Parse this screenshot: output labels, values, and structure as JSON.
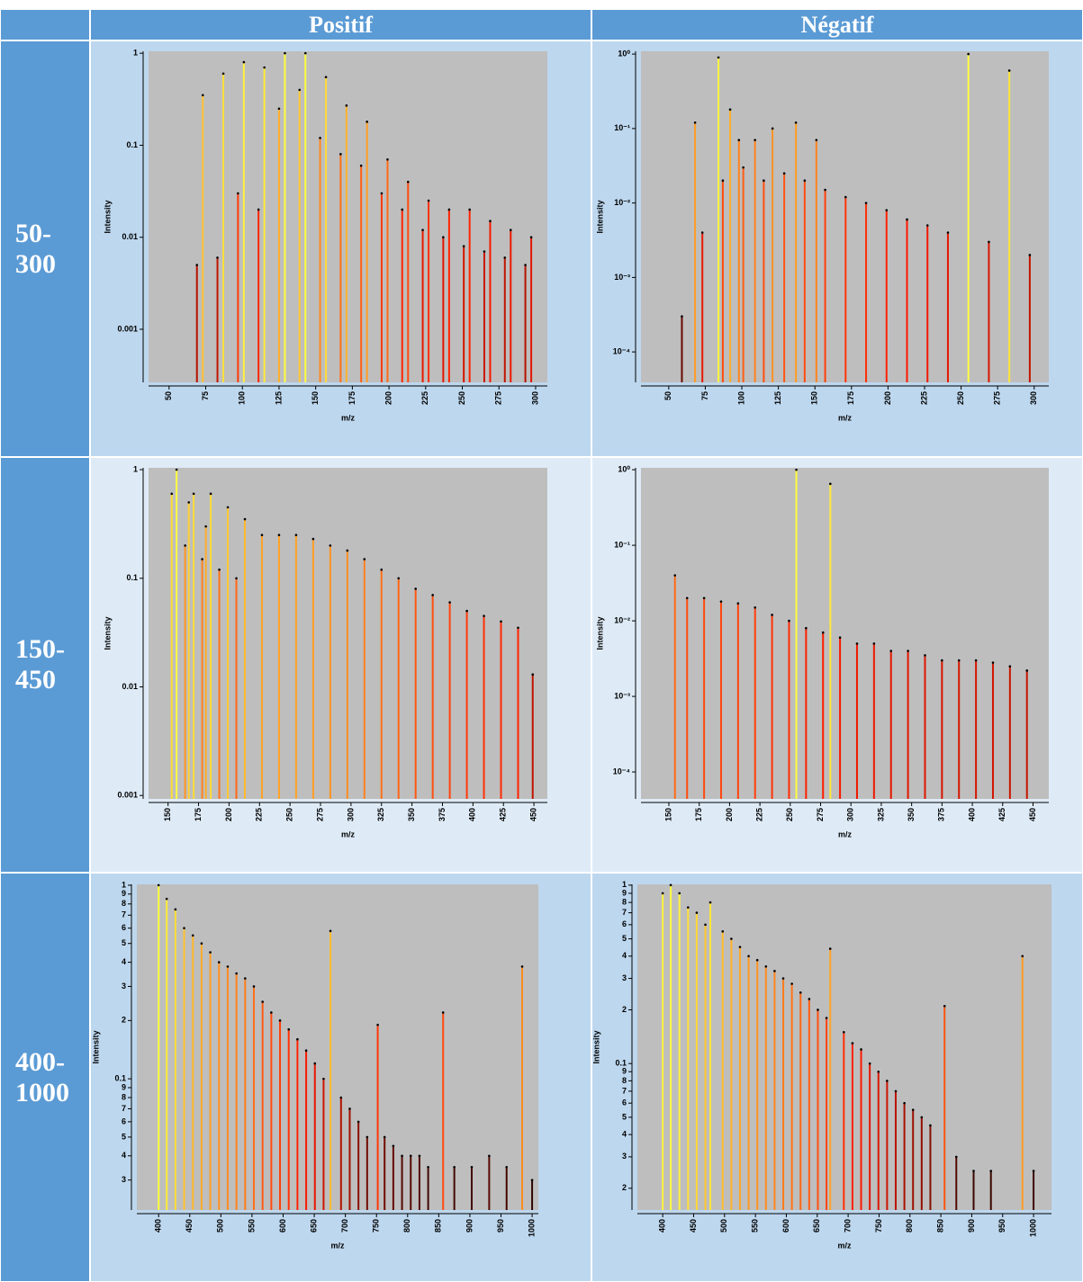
{
  "table": {
    "headers": [
      "Positif",
      "Négatif"
    ],
    "rows": [
      "50-300",
      "150-450",
      "400-1000"
    ]
  },
  "chart_data": [
    {
      "type": "stem",
      "xlabel": "m/z",
      "ylabel": "Intensity",
      "log_y": true,
      "colormap": [
        "#000000",
        "#ff1a00",
        "#ffff40"
      ],
      "xlim": [
        36,
        308
      ],
      "ylim": [
        0.000265,
        1.05
      ],
      "xticks": [
        50,
        75,
        100,
        125,
        150,
        175,
        200,
        225,
        250,
        275,
        300
      ],
      "yticks": [
        0.001,
        0.01,
        0.1,
        1
      ],
      "x": [
        69,
        73,
        83,
        87,
        97,
        101,
        111,
        115,
        125,
        129,
        139,
        143,
        153,
        157,
        167,
        171,
        181,
        185,
        195,
        199,
        209,
        213,
        223,
        227,
        237,
        241,
        251,
        255,
        265,
        269,
        279,
        283,
        293,
        297
      ],
      "values": [
        0.005,
        0.35,
        0.006,
        0.6,
        0.03,
        0.8,
        0.02,
        0.7,
        0.25,
        1.0,
        0.4,
        1.0,
        0.12,
        0.55,
        0.08,
        0.27,
        0.06,
        0.18,
        0.03,
        0.07,
        0.02,
        0.04,
        0.012,
        0.025,
        0.01,
        0.02,
        0.008,
        0.02,
        0.007,
        0.015,
        0.006,
        0.012,
        0.005,
        0.01
      ]
    },
    {
      "type": "stem",
      "xlabel": "m/z",
      "ylabel": "Intensity",
      "log_y": true,
      "colormap": [
        "#000000",
        "#ff1a00",
        "#ffff40"
      ],
      "xlim": [
        31,
        310
      ],
      "ylim": [
        3.9e-05,
        1.09
      ],
      "xticks": [
        50,
        75,
        100,
        125,
        150,
        175,
        200,
        225,
        250,
        275,
        300
      ],
      "yticks": [
        {
          "value": 0.0001,
          "label": "10⁻⁴"
        },
        {
          "value": 0.001,
          "label": "10⁻³"
        },
        {
          "value": 0.01,
          "label": "10⁻²"
        },
        {
          "value": 0.1,
          "label": "10⁻¹"
        },
        {
          "value": 1,
          "label": "10⁰"
        }
      ],
      "x": [
        59,
        68,
        73,
        84,
        87,
        92,
        98,
        101,
        109,
        115,
        121,
        129,
        137,
        143,
        151,
        157,
        171,
        185,
        199,
        213,
        227,
        241,
        255,
        269,
        283,
        297
      ],
      "values": [
        0.0003,
        0.12,
        0.004,
        0.9,
        0.02,
        0.18,
        0.07,
        0.03,
        0.07,
        0.02,
        0.1,
        0.025,
        0.12,
        0.02,
        0.07,
        0.015,
        0.012,
        0.01,
        0.008,
        0.006,
        0.005,
        0.004,
        1.0,
        0.003,
        0.6,
        0.002
      ]
    },
    {
      "type": "stem",
      "xlabel": "m/z",
      "ylabel": "Intensity",
      "log_y": true,
      "colormap": [
        "#000000",
        "#ff1a00",
        "#ffff40"
      ],
      "xlim": [
        134,
        461
      ],
      "ylim": [
        0.00093,
        1.04
      ],
      "xticks": [
        150,
        175,
        200,
        225,
        250,
        275,
        300,
        325,
        350,
        375,
        400,
        425,
        450
      ],
      "yticks": [
        0.001,
        0.01,
        0.1,
        1
      ],
      "x": [
        153,
        157,
        164,
        167,
        171,
        178,
        181,
        185,
        192,
        199,
        206,
        213,
        227,
        241,
        255,
        269,
        283,
        297,
        311,
        325,
        339,
        353,
        367,
        381,
        395,
        409,
        423,
        437,
        449
      ],
      "values": [
        0.6,
        1.0,
        0.2,
        0.5,
        0.6,
        0.15,
        0.3,
        0.6,
        0.12,
        0.45,
        0.1,
        0.35,
        0.25,
        0.25,
        0.25,
        0.23,
        0.2,
        0.18,
        0.15,
        0.12,
        0.1,
        0.08,
        0.07,
        0.06,
        0.05,
        0.045,
        0.04,
        0.035,
        0.013
      ]
    },
    {
      "type": "stem",
      "xlabel": "m/z",
      "ylabel": "Intensity",
      "log_y": true,
      "colormap": [
        "#000000",
        "#ff1a00",
        "#ffff40"
      ],
      "xlim": [
        127,
        463
      ],
      "ylim": [
        4.4e-05,
        1.06
      ],
      "xticks": [
        150,
        175,
        200,
        225,
        250,
        275,
        300,
        325,
        350,
        375,
        400,
        425,
        450
      ],
      "yticks": [
        {
          "value": 0.0001,
          "label": "10⁻⁴"
        },
        {
          "value": 0.001,
          "label": "10⁻³"
        },
        {
          "value": 0.01,
          "label": "10⁻²"
        },
        {
          "value": 0.1,
          "label": "10⁻¹"
        },
        {
          "value": 1,
          "label": "10⁰"
        }
      ],
      "x": [
        155,
        165,
        179,
        193,
        207,
        221,
        235,
        249,
        255,
        263,
        277,
        283,
        291,
        305,
        319,
        333,
        347,
        361,
        375,
        389,
        403,
        417,
        431,
        445
      ],
      "values": [
        0.04,
        0.02,
        0.02,
        0.018,
        0.017,
        0.015,
        0.012,
        0.01,
        1.0,
        0.008,
        0.007,
        0.65,
        0.006,
        0.005,
        0.005,
        0.004,
        0.004,
        0.0035,
        0.003,
        0.003,
        0.003,
        0.0028,
        0.0025,
        0.0022
      ]
    },
    {
      "type": "stem",
      "xlabel": "m/z",
      "ylabel": "Intensity",
      "log_y": true,
      "colormap": [
        "#000000",
        "#ff1a00",
        "#ffff40"
      ],
      "xlim": [
        365,
        1010
      ],
      "ylim": [
        0.021,
        1.01
      ],
      "xticks": [
        400,
        450,
        500,
        550,
        600,
        650,
        700,
        750,
        800,
        850,
        900,
        950,
        1000
      ],
      "yticks": [
        1,
        {
          "value": 0.9,
          "label": "9"
        },
        {
          "value": 0.8,
          "label": "8"
        },
        {
          "value": 0.7,
          "label": "7"
        },
        {
          "value": 0.6,
          "label": "6"
        },
        {
          "value": 0.5,
          "label": "5"
        },
        {
          "value": 0.4,
          "label": "4"
        },
        {
          "value": 0.3,
          "label": "3"
        },
        {
          "value": 0.2,
          "label": "2"
        },
        0.1,
        {
          "value": 0.09,
          "label": "9"
        },
        {
          "value": 0.08,
          "label": "8"
        },
        {
          "value": 0.07,
          "label": "7"
        },
        {
          "value": 0.06,
          "label": "6"
        },
        {
          "value": 0.05,
          "label": "5"
        },
        {
          "value": 0.04,
          "label": "4"
        },
        {
          "value": 0.03,
          "label": "3"
        }
      ],
      "x": [
        400,
        413,
        427,
        441,
        455,
        469,
        483,
        497,
        511,
        525,
        539,
        553,
        567,
        581,
        595,
        609,
        623,
        637,
        651,
        665,
        676,
        693,
        707,
        721,
        735,
        752,
        763,
        777,
        791,
        805,
        819,
        833,
        857,
        875,
        903,
        931,
        959,
        984,
        1000
      ],
      "values": [
        1.0,
        0.85,
        0.75,
        0.6,
        0.55,
        0.5,
        0.45,
        0.4,
        0.38,
        0.35,
        0.33,
        0.3,
        0.25,
        0.22,
        0.2,
        0.18,
        0.16,
        0.14,
        0.12,
        0.1,
        0.58,
        0.08,
        0.07,
        0.06,
        0.05,
        0.19,
        0.05,
        0.045,
        0.04,
        0.04,
        0.04,
        0.035,
        0.22,
        0.035,
        0.035,
        0.04,
        0.035,
        0.38,
        0.03
      ]
    },
    {
      "type": "stem",
      "xlabel": "m/z",
      "ylabel": "Intensity",
      "log_y": true,
      "colormap": [
        "#000000",
        "#ff1a00",
        "#ffff40"
      ],
      "xlim": [
        359,
        1029
      ],
      "ylim": [
        0.0151,
        1.01
      ],
      "xticks": [
        400,
        450,
        500,
        550,
        600,
        650,
        700,
        750,
        800,
        850,
        900,
        950,
        1000
      ],
      "yticks": [
        1,
        {
          "value": 0.9,
          "label": "9"
        },
        {
          "value": 0.8,
          "label": "8"
        },
        {
          "value": 0.7,
          "label": "7"
        },
        {
          "value": 0.6,
          "label": "6"
        },
        {
          "value": 0.5,
          "label": "5"
        },
        {
          "value": 0.4,
          "label": "4"
        },
        {
          "value": 0.3,
          "label": "3"
        },
        {
          "value": 0.2,
          "label": "2"
        },
        0.1,
        {
          "value": 0.09,
          "label": "9"
        },
        {
          "value": 0.08,
          "label": "8"
        },
        {
          "value": 0.07,
          "label": "7"
        },
        {
          "value": 0.06,
          "label": "6"
        },
        {
          "value": 0.05,
          "label": "5"
        },
        {
          "value": 0.04,
          "label": "4"
        },
        {
          "value": 0.03,
          "label": "3"
        },
        {
          "value": 0.02,
          "label": "2"
        }
      ],
      "x": [
        400,
        413,
        427,
        441,
        455,
        469,
        477,
        497,
        511,
        525,
        539,
        553,
        567,
        581,
        595,
        609,
        623,
        637,
        651,
        665,
        671,
        693,
        707,
        721,
        735,
        749,
        763,
        777,
        791,
        805,
        819,
        833,
        856,
        875,
        903,
        931,
        982,
        1000
      ],
      "values": [
        0.9,
        1.0,
        0.9,
        0.75,
        0.7,
        0.6,
        0.8,
        0.55,
        0.5,
        0.45,
        0.4,
        0.38,
        0.35,
        0.33,
        0.3,
        0.28,
        0.25,
        0.23,
        0.2,
        0.18,
        0.44,
        0.15,
        0.13,
        0.12,
        0.1,
        0.09,
        0.08,
        0.07,
        0.06,
        0.055,
        0.05,
        0.045,
        0.21,
        0.03,
        0.025,
        0.025,
        0.4,
        0.025
      ]
    }
  ]
}
